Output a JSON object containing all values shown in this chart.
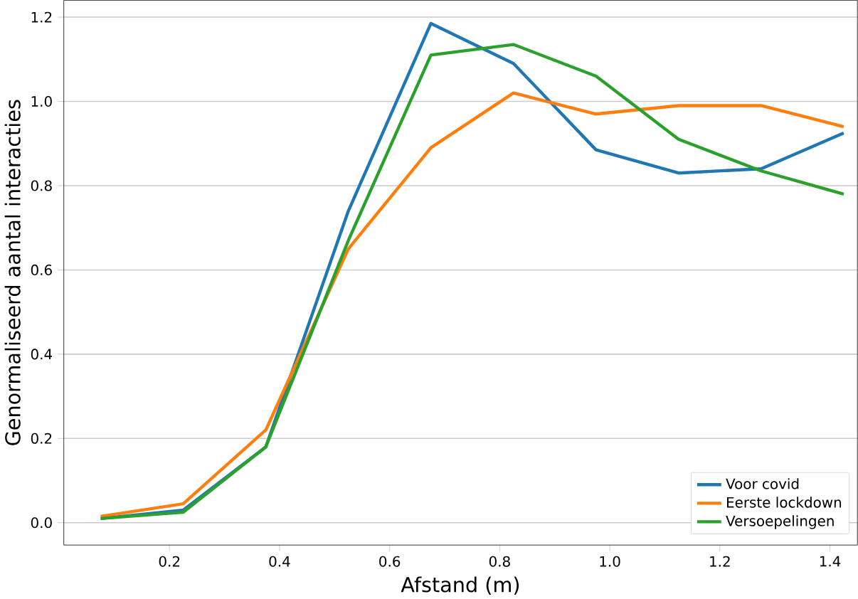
{
  "chart_data": {
    "type": "line",
    "xlabel": "Afstand (m)",
    "ylabel": "Genormaliseerd aantal interacties",
    "x": [
      0.075,
      0.225,
      0.375,
      0.525,
      0.675,
      0.825,
      0.975,
      1.125,
      1.275,
      1.425
    ],
    "series": [
      {
        "name": "Voor covid",
        "color": "#1f77b4",
        "values": [
          0.01,
          0.03,
          0.18,
          0.74,
          1.185,
          1.09,
          0.885,
          0.83,
          0.84,
          0.925
        ]
      },
      {
        "name": "Eerste lockdown",
        "color": "#ff7f0e",
        "values": [
          0.015,
          0.045,
          0.22,
          0.65,
          0.89,
          1.02,
          0.97,
          0.99,
          0.99,
          0.94
        ]
      },
      {
        "name": "Versoepelingen",
        "color": "#2ca02c",
        "values": [
          0.01,
          0.025,
          0.18,
          0.67,
          1.11,
          1.135,
          1.06,
          0.91,
          0.835,
          0.78
        ]
      }
    ],
    "xlim": [
      0.008,
      1.45
    ],
    "ylim": [
      -0.053,
      1.24
    ],
    "xticks": [
      0.2,
      0.4,
      0.6,
      0.8,
      {
        "value": 1,
        "label": "1.0"
      },
      1.2,
      1.4
    ],
    "yticks": [
      {
        "value": 0,
        "label": "0.0"
      },
      0.2,
      0.4,
      0.6,
      0.8,
      {
        "value": 1,
        "label": "1.0"
      },
      1.2
    ],
    "grid": "y",
    "legend": "bottom right",
    "line_style": "solid",
    "marker": "none"
  }
}
